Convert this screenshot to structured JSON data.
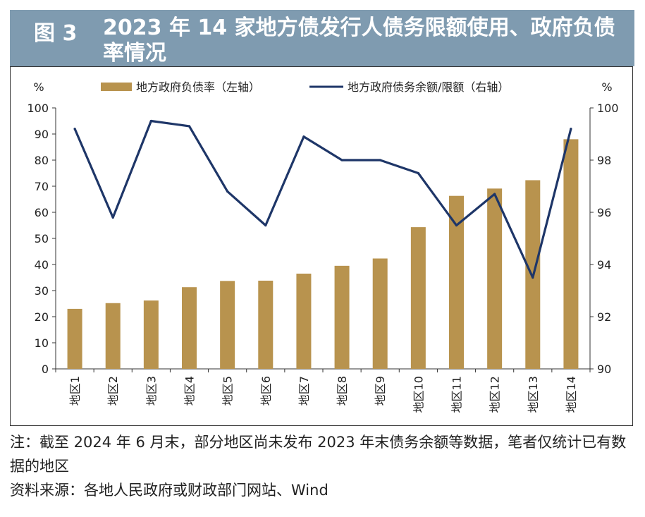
{
  "title": {
    "number": "图 3",
    "text": "2023 年 14 家地方债发行人债务限额使用、政府负债率情况"
  },
  "chart_data": {
    "type": "bar+line",
    "categories": [
      "地区1",
      "地区2",
      "地区3",
      "地区4",
      "地区5",
      "地区6",
      "地区7",
      "地区8",
      "地区9",
      "地区10",
      "地区11",
      "地区12",
      "地区13",
      "地区14"
    ],
    "series": [
      {
        "name": "地方政府负债率（左轴）",
        "type": "bar",
        "axis": "left",
        "values": [
          23,
          25.2,
          26.2,
          31.3,
          33.7,
          33.8,
          36.5,
          39.5,
          42.3,
          54.3,
          66.3,
          69.1,
          72.3,
          88.0
        ]
      },
      {
        "name": "地方政府债务余额/限额（右轴）",
        "type": "line",
        "axis": "right",
        "values": [
          99.2,
          95.8,
          99.5,
          99.3,
          96.8,
          95.5,
          98.9,
          98.0,
          98.0,
          97.5,
          95.5,
          96.7,
          93.5,
          99.2
        ]
      }
    ],
    "left_axis": {
      "unit": "%",
      "min": 0,
      "max": 100,
      "ticks": [
        "0",
        "10",
        "20",
        "30",
        "40",
        "50",
        "60",
        "70",
        "80",
        "90",
        "100"
      ]
    },
    "right_axis": {
      "unit": "%",
      "min": 90,
      "max": 100,
      "ticks": [
        "90",
        "92",
        "94",
        "96",
        "98",
        "100"
      ]
    },
    "colors": {
      "bar": "#b8934e",
      "line": "#1e3668"
    },
    "legend_position": "top"
  },
  "notes": {
    "note": "注：截至 2024 年 6 月末，部分地区尚未发布 2023 年末债务余额等数据，笔者仅统计已有数据的地区",
    "source": "资料来源：各地人民政府或财政部门网站、Wind"
  }
}
